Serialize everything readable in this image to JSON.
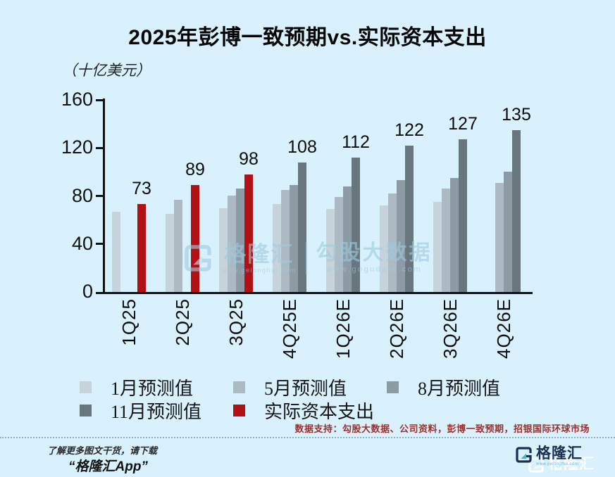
{
  "title": "2025年彭博一致预期vs.实际资本支出",
  "unit_label": "（十亿美元）",
  "chart_data": {
    "type": "bar",
    "title": "2025年彭博一致预期vs.实际资本支出",
    "ylabel": "十亿美元",
    "categories": [
      "1Q25",
      "2Q25",
      "3Q25",
      "4Q25E",
      "1Q26E",
      "2Q26E",
      "3Q26E",
      "4Q26E"
    ],
    "series": [
      {
        "name": "1月预测值",
        "color": "#c7d3db",
        "values": [
          67,
          65,
          70,
          73,
          69,
          72,
          75,
          null
        ]
      },
      {
        "name": "5月预测值",
        "color": "#adbac3",
        "values": [
          null,
          77,
          80,
          85,
          79,
          82,
          86,
          91
        ]
      },
      {
        "name": "8月预测值",
        "color": "#8c9ba4",
        "values": [
          null,
          null,
          86,
          89,
          88,
          93,
          95,
          100
        ]
      },
      {
        "name": "11月预测值",
        "color": "#68767e",
        "values": [
          null,
          null,
          null,
          108,
          112,
          122,
          127,
          135
        ]
      },
      {
        "name": "实际资本支出",
        "color": "#b11015",
        "values": [
          73,
          89,
          98,
          null,
          null,
          null,
          null,
          null
        ]
      }
    ],
    "bar_labels": [
      "73",
      "89",
      "98",
      "108",
      "112",
      "122",
      "127",
      "135"
    ],
    "ylim": [
      0,
      160
    ],
    "yticks": [
      0,
      40,
      80,
      120,
      160
    ],
    "grid": false,
    "legend_position": "bottom",
    "legend_row_break": 3
  },
  "watermark": {
    "brand": "格隆汇",
    "brand_url": "www.gelonghui.com",
    "partner": "勾股大数据",
    "partner_url": "www.gogudata.com"
  },
  "source_note": "数据支持：勾股大数据、公司资料，彭博一致预期，招银国际环球市场",
  "footer": {
    "promo_line1": "了解更多图文干货，请下载",
    "promo_line2": "“格隆汇App”",
    "logo_text": "格隆汇",
    "logo_url": "www.gelonghui.com"
  },
  "colors": {
    "background": "#d9f1fc",
    "axis": "#121212",
    "actual_red": "#b11015",
    "source_red": "#9e2f2b",
    "logo_navy": "#1c3050",
    "logo_blue": "#56aadd",
    "watermark_blue": "#9ecbe2"
  }
}
